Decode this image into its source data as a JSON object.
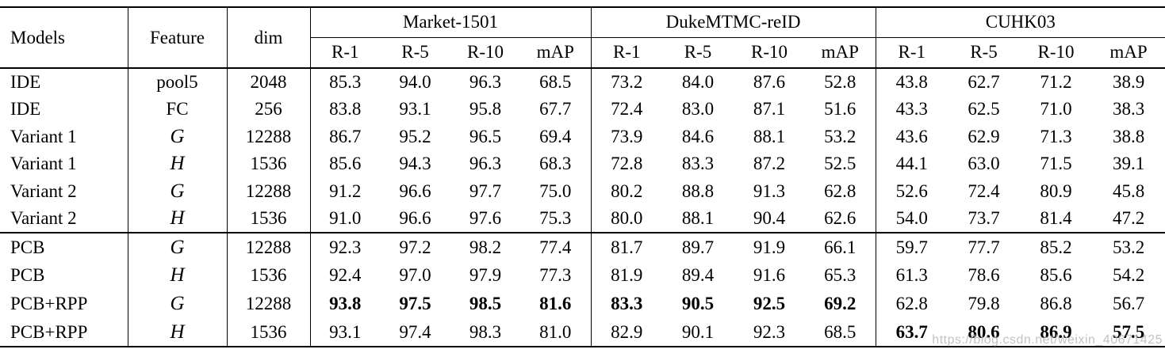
{
  "watermark": "https://blog.csdn.net/weixin_40671425",
  "table": {
    "header": {
      "models": "Models",
      "feature": "Feature",
      "dim": "dim",
      "groups": [
        {
          "label": "Market-1501",
          "metrics": [
            "R-1",
            "R-5",
            "R-10",
            "mAP"
          ]
        },
        {
          "label": "DukeMTMC-reID",
          "metrics": [
            "R-1",
            "R-5",
            "R-10",
            "mAP"
          ]
        },
        {
          "label": "CUHK03",
          "metrics": [
            "R-1",
            "R-5",
            "R-10",
            "mAP"
          ]
        }
      ]
    },
    "sections": [
      {
        "rows": [
          {
            "model": "IDE",
            "feature": "pool5",
            "script": false,
            "dim": "2048",
            "values": [
              "85.3",
              "94.0",
              "96.3",
              "68.5",
              "73.2",
              "84.0",
              "87.6",
              "52.8",
              "43.8",
              "62.7",
              "71.2",
              "38.9"
            ],
            "bold": []
          },
          {
            "model": "IDE",
            "feature": "FC",
            "script": false,
            "dim": "256",
            "values": [
              "83.8",
              "93.1",
              "95.8",
              "67.7",
              "72.4",
              "83.0",
              "87.1",
              "51.6",
              "43.3",
              "62.5",
              "71.0",
              "38.3"
            ],
            "bold": []
          },
          {
            "model": "Variant 1",
            "feature": "G",
            "script": true,
            "dim": "12288",
            "values": [
              "86.7",
              "95.2",
              "96.5",
              "69.4",
              "73.9",
              "84.6",
              "88.1",
              "53.2",
              "43.6",
              "62.9",
              "71.3",
              "38.8"
            ],
            "bold": []
          },
          {
            "model": "Variant 1",
            "feature": "H",
            "script": true,
            "dim": "1536",
            "values": [
              "85.6",
              "94.3",
              "96.3",
              "68.3",
              "72.8",
              "83.3",
              "87.2",
              "52.5",
              "44.1",
              "63.0",
              "71.5",
              "39.1"
            ],
            "bold": []
          },
          {
            "model": "Variant 2",
            "feature": "G",
            "script": true,
            "dim": "12288",
            "values": [
              "91.2",
              "96.6",
              "97.7",
              "75.0",
              "80.2",
              "88.8",
              "91.3",
              "62.8",
              "52.6",
              "72.4",
              "80.9",
              "45.8"
            ],
            "bold": []
          },
          {
            "model": "Variant 2",
            "feature": "H",
            "script": true,
            "dim": "1536",
            "values": [
              "91.0",
              "96.6",
              "97.6",
              "75.3",
              "80.0",
              "88.1",
              "90.4",
              "62.6",
              "54.0",
              "73.7",
              "81.4",
              "47.2"
            ],
            "bold": []
          }
        ]
      },
      {
        "rows": [
          {
            "model": "PCB",
            "feature": "G",
            "script": true,
            "dim": "12288",
            "values": [
              "92.3",
              "97.2",
              "98.2",
              "77.4",
              "81.7",
              "89.7",
              "91.9",
              "66.1",
              "59.7",
              "77.7",
              "85.2",
              "53.2"
            ],
            "bold": []
          },
          {
            "model": "PCB",
            "feature": "H",
            "script": true,
            "dim": "1536",
            "values": [
              "92.4",
              "97.0",
              "97.9",
              "77.3",
              "81.9",
              "89.4",
              "91.6",
              "65.3",
              "61.3",
              "78.6",
              "85.6",
              "54.2"
            ],
            "bold": []
          },
          {
            "model": "PCB+RPP",
            "feature": "G",
            "script": true,
            "dim": "12288",
            "values": [
              "93.8",
              "97.5",
              "98.5",
              "81.6",
              "83.3",
              "90.5",
              "92.5",
              "69.2",
              "62.8",
              "79.8",
              "86.8",
              "56.7"
            ],
            "bold": [
              0,
              1,
              2,
              3,
              4,
              5,
              6,
              7
            ]
          },
          {
            "model": "PCB+RPP",
            "feature": "H",
            "script": true,
            "dim": "1536",
            "values": [
              "93.1",
              "97.4",
              "98.3",
              "81.0",
              "82.9",
              "90.1",
              "92.3",
              "68.5",
              "63.7",
              "80.6",
              "86.9",
              "57.5"
            ],
            "bold": [
              8,
              9,
              10,
              11
            ]
          }
        ]
      }
    ]
  }
}
